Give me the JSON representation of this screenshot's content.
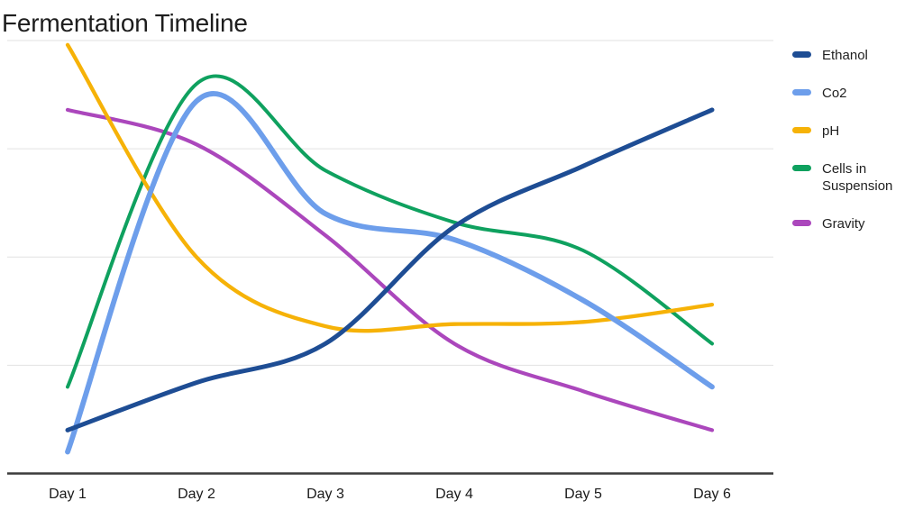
{
  "title": "Fermentation Timeline",
  "chart_data": {
    "type": "line",
    "smooth": true,
    "title": "Fermentation Timeline",
    "xlabel": "",
    "ylabel": "",
    "categories": [
      "Day 1",
      "Day 2",
      "Day 3",
      "Day 4",
      "Day 5",
      "Day 6"
    ],
    "ylim": [
      0,
      100
    ],
    "y_axis_labels_visible": false,
    "gridline_values": [
      25,
      50,
      75,
      100
    ],
    "legend_position": "right",
    "grid_color": "#e2e2e2",
    "axis_color": "#3b3b3b",
    "label_color": "#1a1a1a",
    "series": [
      {
        "name": "Ethanol",
        "color": "#1e4d94",
        "stroke_width": 5.0,
        "values": [
          10,
          21,
          30,
          57,
          71,
          84
        ]
      },
      {
        "name": "Co2",
        "color": "#6d9eeb",
        "stroke_width": 5.8,
        "values": [
          5,
          86,
          60,
          54,
          40,
          20
        ]
      },
      {
        "name": "pH",
        "color": "#f6b207",
        "stroke_width": 4.3,
        "values": [
          99,
          50,
          34,
          34.5,
          35,
          39
        ]
      },
      {
        "name": "Cells in Suspension",
        "color": "#0fa15f",
        "stroke_width": 4.0,
        "values": [
          20,
          90,
          70,
          58,
          51.5,
          30
        ]
      },
      {
        "name": "Gravity",
        "color": "#ab47bc",
        "stroke_width": 4.2,
        "values": [
          84,
          76,
          55,
          30,
          19,
          10
        ]
      }
    ]
  }
}
